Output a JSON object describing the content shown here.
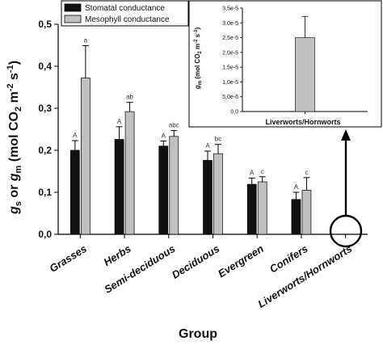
{
  "chart_data": [
    {
      "type": "bar",
      "xlabel": "Group",
      "ylabel": "g_s or g_m (mol CO2 m-2 s-1)",
      "ylabel_parts": {
        "g1": "g",
        "sub1": "s",
        "or": " or ",
        "g2": "g",
        "sub2": "m",
        "unit_open": " (mol CO",
        "unit_co2_sub": "2",
        "unit_m": " m",
        "unit_m_exp": "-2",
        "unit_s": " s",
        "unit_s_exp": "-1",
        "unit_close": ")"
      },
      "ylim": [
        0,
        0.5
      ],
      "yticks": [
        "0,0",
        "0,1",
        "0,2",
        "0,3",
        "0,4",
        "0,5"
      ],
      "ytick_values": [
        0,
        0.1,
        0.2,
        0.3,
        0.4,
        0.5
      ],
      "categories": [
        "Grasses",
        "Herbs",
        "Semi-deciduous",
        "Deciduous",
        "Evergreen",
        "Conifers",
        "Liverworts/Hornworts"
      ],
      "legend": {
        "placement": "top-left"
      },
      "series": [
        {
          "name": "Stomatal conductance",
          "color": "#111111",
          "values": [
            0.2,
            0.226,
            0.21,
            0.176,
            0.119,
            0.083,
            null
          ],
          "errors": [
            0.023,
            0.03,
            0.012,
            0.022,
            0.015,
            0.017,
            null
          ],
          "annotations": [
            "A",
            "A",
            "A",
            "A",
            "A",
            "A",
            ""
          ]
        },
        {
          "name": "Mesophyll conductance",
          "color": "#c0c0c0",
          "values": [
            0.372,
            0.292,
            0.233,
            0.192,
            0.125,
            0.105,
            null
          ],
          "errors": [
            0.077,
            0.022,
            0.014,
            0.022,
            0.012,
            0.03,
            null
          ],
          "annotations": [
            "a",
            "ab",
            "abc",
            "bc",
            "c",
            "c",
            ""
          ]
        }
      ],
      "grid": false
    },
    {
      "type": "bar",
      "placement": "inset top-right",
      "ylabel": "g_m (mol CO2 m-2 s-1)",
      "ylabel_parts": {
        "g": "g",
        "sub": "m",
        "unit_open": " (mol CO",
        "unit_co2_sub": "2",
        "unit_m": " m",
        "unit_m_exp": "-2",
        "unit_s": " s",
        "unit_s_exp": "-1",
        "unit_close": ")"
      },
      "ylim": [
        0,
        3.5e-05
      ],
      "yticks": [
        "0,0",
        "5,0e-6",
        "1,0e-5",
        "1,5e-5",
        "2,0e-5",
        "2,5e-5",
        "3,0e-5",
        "3,5e-5"
      ],
      "ytick_values": [
        0,
        5e-06,
        1e-05,
        1.5e-05,
        2e-05,
        2.5e-05,
        3e-05,
        3.5e-05
      ],
      "categories": [
        "Liverworts/Hornworts"
      ],
      "series": [
        {
          "name": "Mesophyll conductance",
          "color": "#c0c0c0",
          "values": [
            2.5e-05
          ],
          "errors": [
            7.2e-06
          ]
        }
      ],
      "grid": false
    }
  ]
}
